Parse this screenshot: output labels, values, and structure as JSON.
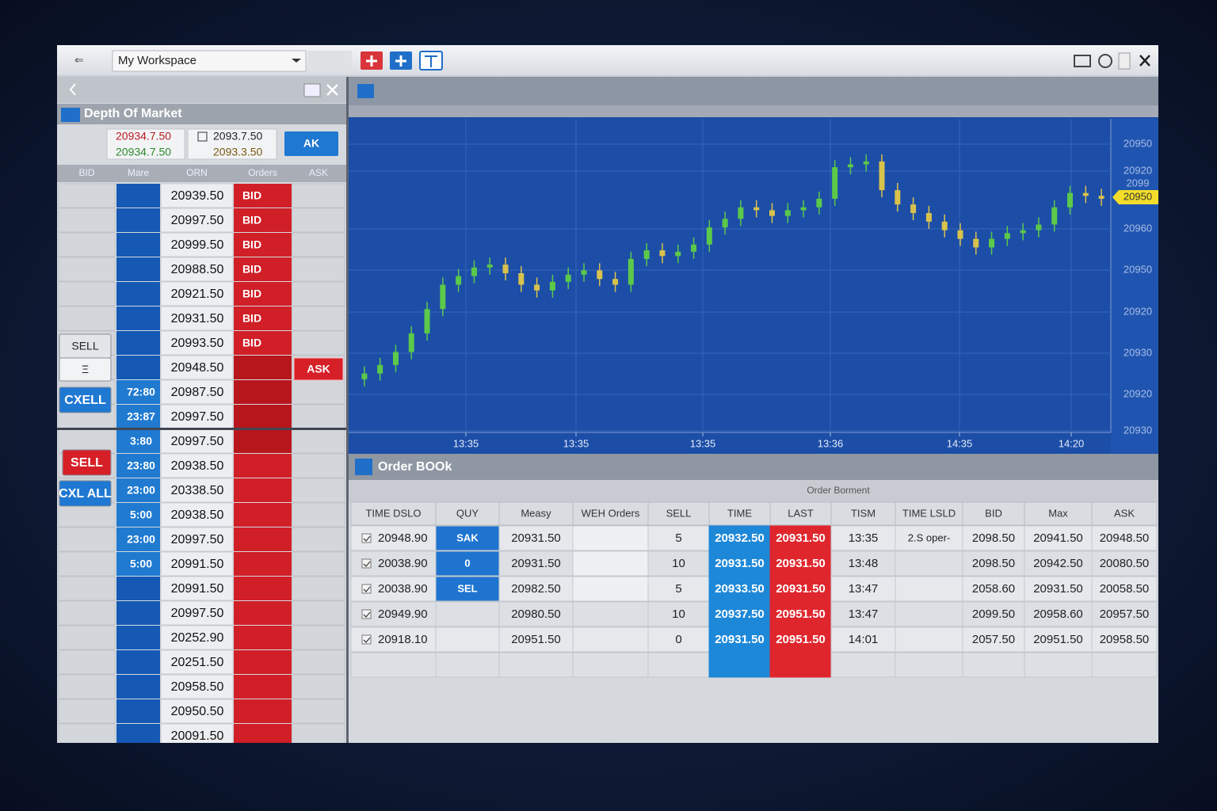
{
  "toolbar": {
    "workspace": "My Workspace"
  },
  "dom": {
    "title": "Depth Of Market",
    "quotes": [
      "20934.7.50",
      "20934.7.50",
      "2093.7.50",
      "2093.3.50"
    ],
    "ak_button": "AK",
    "headers": [
      "BID",
      "Mare",
      "ORN",
      "Orders",
      "ASK"
    ],
    "prices": [
      "20939.50",
      "20997.50",
      "20999.50",
      "20988.50",
      "20921.50",
      "20931.50",
      "20993.50",
      "20948.50",
      "20987.50",
      "20997.50",
      "20997.50",
      "20938.50",
      "20338.50",
      "20938.50",
      "20997.50",
      "20991.50",
      "20991.50",
      "20997.50",
      "20252.90",
      "20251.50",
      "20958.50",
      "20950.50",
      "20091.50"
    ],
    "orders": [
      "BID",
      "BID",
      "BID",
      "BID",
      "BID",
      "BID",
      "BID"
    ],
    "mare": [
      null,
      null,
      null,
      null,
      null,
      null,
      null,
      null,
      "72:80",
      "23:87",
      "3:80",
      "23:80",
      "23:00",
      "5:00",
      "23:00",
      "5:00"
    ],
    "ask_button": "ASK",
    "buttons": [
      "SELL",
      "Ξ",
      "CXELL",
      "SELL",
      "CXL ALL"
    ]
  },
  "chart_data": {
    "type": "candlestick",
    "ylim": [
      20930,
      20952
    ],
    "up_color": "#5cc94a",
    "down_color": "#d9c24c",
    "y_labels": [
      "20950",
      "20920",
      "2099",
      "20960",
      "20950",
      "20920",
      "20930",
      "20920",
      "20930"
    ],
    "x_labels": [
      "13:35",
      "13:35",
      "13:35",
      "13:36",
      "14:35",
      "14:20"
    ],
    "price_tag": "20950",
    "candles": [
      [
        20933.6,
        20934.5,
        20933.1,
        20934.0
      ],
      [
        20934.0,
        20935.1,
        20933.5,
        20934.6
      ],
      [
        20934.6,
        20936.0,
        20934.1,
        20935.5
      ],
      [
        20935.5,
        20937.3,
        20935.0,
        20936.8
      ],
      [
        20936.8,
        20939.0,
        20936.3,
        20938.5
      ],
      [
        20938.5,
        20940.7,
        20938.0,
        20940.2
      ],
      [
        20940.2,
        20941.3,
        20939.7,
        20940.8
      ],
      [
        20940.8,
        20941.9,
        20940.3,
        20941.4
      ],
      [
        20941.4,
        20942.1,
        20940.9,
        20941.6
      ],
      [
        20941.6,
        20942.1,
        20940.5,
        20941.0
      ],
      [
        20941.0,
        20941.5,
        20939.7,
        20940.2
      ],
      [
        20940.2,
        20940.7,
        20939.3,
        20939.8
      ],
      [
        20939.8,
        20940.9,
        20939.3,
        20940.4
      ],
      [
        20940.4,
        20941.4,
        20939.9,
        20940.9
      ],
      [
        20940.9,
        20941.7,
        20940.4,
        20941.2
      ],
      [
        20941.2,
        20941.7,
        20940.1,
        20940.6
      ],
      [
        20940.6,
        20941.1,
        20939.7,
        20940.2
      ],
      [
        20940.2,
        20942.5,
        20939.7,
        20942.0
      ],
      [
        20942.0,
        20943.1,
        20941.5,
        20942.6
      ],
      [
        20942.6,
        20943.1,
        20941.7,
        20942.2
      ],
      [
        20942.2,
        20943.0,
        20941.7,
        20942.5
      ],
      [
        20942.5,
        20943.5,
        20942.0,
        20943.0
      ],
      [
        20943.0,
        20944.7,
        20942.5,
        20944.2
      ],
      [
        20944.2,
        20945.3,
        20943.7,
        20944.8
      ],
      [
        20944.8,
        20946.1,
        20944.3,
        20945.6
      ],
      [
        20945.6,
        20946.1,
        20944.9,
        20945.4
      ],
      [
        20945.4,
        20945.9,
        20944.5,
        20945.0
      ],
      [
        20945.0,
        20945.9,
        20944.5,
        20945.4
      ],
      [
        20945.4,
        20946.1,
        20944.9,
        20945.6
      ],
      [
        20945.6,
        20946.7,
        20945.1,
        20946.2
      ],
      [
        20946.2,
        20948.9,
        20945.7,
        20948.4
      ],
      [
        20948.4,
        20949.1,
        20947.9,
        20948.6
      ],
      [
        20948.6,
        20949.3,
        20948.1,
        20948.8
      ],
      [
        20948.8,
        20949.3,
        20946.3,
        20946.8
      ],
      [
        20946.8,
        20947.3,
        20945.3,
        20945.8
      ],
      [
        20945.8,
        20946.3,
        20944.7,
        20945.2
      ],
      [
        20945.2,
        20945.7,
        20944.1,
        20944.6
      ],
      [
        20944.6,
        20945.1,
        20943.5,
        20944.0
      ],
      [
        20944.0,
        20944.5,
        20942.9,
        20943.4
      ],
      [
        20943.4,
        20943.9,
        20942.3,
        20942.8
      ],
      [
        20942.8,
        20943.9,
        20942.3,
        20943.4
      ],
      [
        20943.4,
        20944.3,
        20942.9,
        20943.8
      ],
      [
        20943.8,
        20944.5,
        20943.3,
        20944.0
      ],
      [
        20944.0,
        20944.9,
        20943.5,
        20944.4
      ],
      [
        20944.4,
        20946.1,
        20943.9,
        20945.6
      ],
      [
        20945.6,
        20947.1,
        20945.1,
        20946.6
      ],
      [
        20946.6,
        20947.1,
        20945.9,
        20946.4
      ],
      [
        20946.4,
        20946.9,
        20945.7,
        20946.2
      ]
    ]
  },
  "order_book": {
    "title": "Order BOOk",
    "subtitle": "Order Borment",
    "headers": [
      "TIME DSLO",
      "QUY",
      "Measy",
      "WEH Orders",
      "SELL",
      "TIME",
      "LAST",
      "TISM",
      "TIME LSLD",
      "BID",
      "Max",
      "ASK"
    ],
    "rows": [
      [
        "20948.90",
        "SAK",
        "20931.50",
        null,
        "5",
        "20932.50",
        "20931.50",
        "13:35",
        "2.S oper-",
        "2098.50",
        "20941.50",
        "20948.50"
      ],
      [
        "20038.90",
        "0",
        "20931.50",
        null,
        "10",
        "20931.50",
        "20931.50",
        "13:48",
        null,
        "2098.50",
        "20942.50",
        "20080.50"
      ],
      [
        "20038.90",
        "SEL",
        "20982.50",
        null,
        "5",
        "20933.50",
        "20931.50",
        "13:47",
        null,
        "2058.60",
        "20931.50",
        "20058.50"
      ],
      [
        "20949.90",
        null,
        "20980.50",
        null,
        "10",
        "20937.50",
        "20951.50",
        "13:47",
        null,
        "2099.50",
        "20958.60",
        "20957.50"
      ],
      [
        "20918.10",
        null,
        "20951.50",
        null,
        "0",
        "20931.50",
        "20951.50",
        "14:01",
        null,
        "2057.50",
        "20951.50",
        "20958.50"
      ]
    ]
  }
}
